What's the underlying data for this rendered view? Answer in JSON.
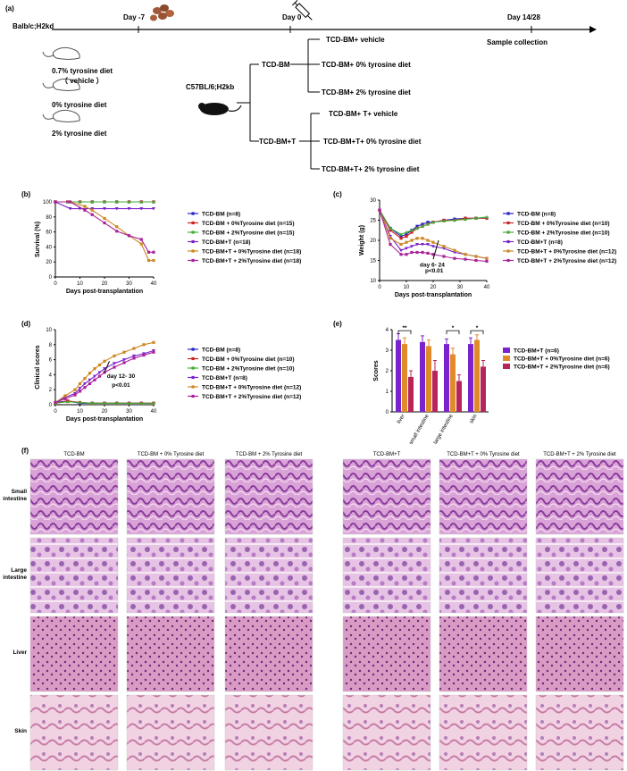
{
  "panel_a": {
    "label": "(a)",
    "donor_strain": "Balb/c;H2kd",
    "timeline": [
      {
        "label": "Day -7",
        "day": -7
      },
      {
        "label": "Day 0",
        "day": 0
      },
      {
        "label": "Day 14/28",
        "day": 14
      }
    ],
    "sample_collection": "Sample collection",
    "diets": [
      "0.7% tyrosine diet",
      "（ vehicle ）",
      "0% tyrosine diet",
      "2% tyrosine diet"
    ],
    "recipient_strain": "C57BL/6;H2kb",
    "groups": [
      {
        "name": "TCD-BM",
        "subgroups": [
          "TCD-BM+ vehicle",
          "TCD-BM+ 0% tyrosine diet",
          "TCD-BM+ 2% tyrosine diet"
        ]
      },
      {
        "name": "TCD-BM+T",
        "subgroups": [
          "TCD-BM+ T+ vehicle",
          "TCD-BM+T+ 0% tyrosine diet",
          "TCD-BM+T+ 2% tyrosine diet"
        ]
      }
    ]
  },
  "colors": {
    "blue": "#2222cc",
    "red": "#cc2222",
    "green": "#44aa33",
    "purple": "#7a22cc",
    "orange": "#cc8822",
    "magenta": "#aa2299",
    "bar_purple": "#7a22cc",
    "bar_orange": "#e08a2a",
    "bar_crimson": "#b8245a"
  },
  "panel_b": {
    "label": "(b)",
    "chart_data": {
      "type": "line",
      "xlabel": "Days post-transplantation",
      "ylabel": "Survival (%)",
      "xlim": [
        0,
        40
      ],
      "ylim": [
        0,
        100
      ],
      "xticks": [
        "0",
        "10",
        "20",
        "30",
        "40"
      ],
      "yticks": [
        "0",
        "20",
        "40",
        "60",
        "80",
        "100"
      ],
      "series": [
        {
          "name": "TCD-BM (n=8)",
          "color": "#2222cc",
          "x": [
            0,
            5,
            10,
            15,
            20,
            25,
            30,
            35,
            40
          ],
          "y": [
            100,
            100,
            100,
            100,
            100,
            100,
            100,
            100,
            100
          ]
        },
        {
          "name": "TCD-BM + 0%Tyrosine diet (n=15)",
          "color": "#cc2222",
          "x": [
            0,
            5,
            10,
            15,
            20,
            25,
            30,
            35,
            40
          ],
          "y": [
            100,
            100,
            100,
            100,
            100,
            100,
            100,
            100,
            100
          ]
        },
        {
          "name": "TCD-BM + 2%Tyrosine diet (n=15)",
          "color": "#44aa33",
          "x": [
            0,
            5,
            10,
            15,
            20,
            25,
            30,
            35,
            40
          ],
          "y": [
            100,
            100,
            100,
            100,
            100,
            100,
            100,
            100,
            100
          ]
        },
        {
          "name": "TCD-BM+T (n=18)",
          "color": "#7a22cc",
          "x": [
            0,
            6,
            10,
            15,
            20,
            25,
            30,
            35,
            40
          ],
          "y": [
            100,
            91,
            91,
            91,
            91,
            91,
            91,
            91,
            91
          ]
        },
        {
          "name": "TCD-BM+T + 0%Tyrosine diet (n=18)",
          "color": "#cc8822",
          "x": [
            0,
            6,
            12,
            15,
            20,
            25,
            30,
            35,
            38,
            40
          ],
          "y": [
            100,
            100,
            94,
            89,
            78,
            67,
            55,
            44,
            22,
            22
          ]
        },
        {
          "name": "TCD-BM+T + 2%Tyrosine diet (n=18)",
          "color": "#aa2299",
          "x": [
            0,
            6,
            12,
            15,
            20,
            25,
            30,
            35,
            38,
            40
          ],
          "y": [
            100,
            100,
            89,
            83,
            72,
            61,
            55,
            50,
            33,
            33
          ]
        }
      ]
    }
  },
  "panel_c": {
    "label": "(c)",
    "annotation": [
      "day 6- 24",
      "p<0.01"
    ],
    "chart_data": {
      "type": "line",
      "xlabel": "Days post-transplantation",
      "ylabel": "Weight (g)",
      "xlim": [
        0,
        40
      ],
      "ylim": [
        10,
        30
      ],
      "xticks": [
        "0",
        "10",
        "20",
        "30",
        "40"
      ],
      "yticks": [
        "10",
        "15",
        "20",
        "25",
        "30"
      ],
      "series": [
        {
          "name": "TCD-BM (n=8)",
          "color": "#2222cc",
          "x": [
            0,
            4,
            8,
            10,
            12,
            14,
            16,
            18,
            20,
            24,
            28,
            32,
            36,
            40
          ],
          "y": [
            27.5,
            23,
            21,
            21.5,
            22.5,
            23.5,
            24,
            24.5,
            24.5,
            25,
            25.3,
            25.5,
            25.5,
            25.5
          ]
        },
        {
          "name": "TCD-BM + 0%Tyrosine diet (n=10)",
          "color": "#cc2222",
          "x": [
            0,
            4,
            8,
            10,
            12,
            14,
            16,
            18,
            20,
            24,
            28,
            32,
            36,
            40
          ],
          "y": [
            27.5,
            22.5,
            20.5,
            21,
            22,
            23,
            23.5,
            24,
            24.5,
            25,
            25,
            25.5,
            25.5,
            25.5
          ]
        },
        {
          "name": "TCD-BM + 2%Tyrosine diet (n=10)",
          "color": "#44aa33",
          "x": [
            0,
            4,
            8,
            10,
            12,
            14,
            16,
            18,
            20,
            24,
            28,
            32,
            36,
            40
          ],
          "y": [
            27.5,
            23,
            21.5,
            22,
            22.5,
            23,
            23.5,
            24,
            24.5,
            24.8,
            25,
            25.2,
            25.5,
            25.8
          ]
        },
        {
          "name": "TCD-BM+T (n=8)",
          "color": "#7a22cc",
          "x": [
            0,
            4,
            8,
            10,
            12,
            14,
            16,
            18,
            20,
            24,
            28,
            32,
            36,
            40
          ],
          "y": [
            27.5,
            21,
            17.5,
            18,
            18.5,
            19,
            19,
            19,
            18.5,
            18,
            17,
            16.5,
            16,
            15.5
          ]
        },
        {
          "name": "TCD-BM+T + 0%Tyrosine diet (n=12)",
          "color": "#cc8822",
          "x": [
            0,
            4,
            8,
            10,
            12,
            14,
            16,
            18,
            20,
            24,
            28,
            32,
            36,
            40
          ],
          "y": [
            27.5,
            20.5,
            19,
            19.5,
            20,
            20.5,
            20.5,
            20,
            19.5,
            18.5,
            17.5,
            16.5,
            16,
            15.5
          ]
        },
        {
          "name": "TCD-BM+T + 2%Tyrosine diet (n=12)",
          "color": "#aa2299",
          "x": [
            0,
            4,
            8,
            10,
            12,
            14,
            16,
            18,
            20,
            24,
            28,
            32,
            36,
            40
          ],
          "y": [
            27.5,
            19,
            16.5,
            16.5,
            17,
            17,
            17,
            16.8,
            16.5,
            16,
            15.5,
            15.3,
            15,
            14.8
          ]
        }
      ]
    }
  },
  "panel_d": {
    "label": "(d)",
    "annotation": [
      "day 12- 30",
      "p<0.01"
    ],
    "chart_data": {
      "type": "line",
      "xlabel": "Days post-transplantation",
      "ylabel": "Clinical scores",
      "xlim": [
        0,
        40
      ],
      "ylim": [
        0,
        10
      ],
      "xticks": [
        "0",
        "10",
        "20",
        "30",
        "40"
      ],
      "yticks": [
        "0",
        "2",
        "4",
        "6",
        "8",
        "10"
      ],
      "series": [
        {
          "name": "TCD-BM (n=8)",
          "color": "#2222cc",
          "x": [
            0,
            5,
            10,
            15,
            20,
            25,
            30,
            35,
            40
          ],
          "y": [
            0.3,
            0.5,
            0.2,
            0.2,
            0.2,
            0.2,
            0.2,
            0.2,
            0.2
          ]
        },
        {
          "name": "TCD-BM + 0%Tyrosine diet (n=10)",
          "color": "#cc2222",
          "x": [
            0,
            5,
            10,
            15,
            20,
            25,
            30,
            35,
            40
          ],
          "y": [
            0.2,
            0.5,
            0.3,
            0.2,
            0.2,
            0.2,
            0.2,
            0.2,
            0.2
          ]
        },
        {
          "name": "TCD-BM + 2%Tyrosine diet (n=10)",
          "color": "#44aa33",
          "x": [
            0,
            5,
            10,
            15,
            20,
            25,
            30,
            35,
            40
          ],
          "y": [
            0.2,
            0.4,
            0.3,
            0.2,
            0.2,
            0.2,
            0.2,
            0.2,
            0.2
          ]
        },
        {
          "name": "TCD-BM+T (n=8)",
          "color": "#7a22cc",
          "x": [
            0,
            4,
            8,
            10,
            12,
            14,
            16,
            18,
            20,
            24,
            28,
            32,
            36,
            40
          ],
          "y": [
            0.3,
            1,
            1.5,
            2.2,
            2.8,
            3.3,
            3.8,
            4.3,
            4.8,
            5.5,
            6,
            6.5,
            6.8,
            7.2
          ]
        },
        {
          "name": "TCD-BM+T + 0%Tyrosine diet (n=12)",
          "color": "#cc8822",
          "x": [
            0,
            4,
            8,
            10,
            12,
            14,
            16,
            18,
            20,
            24,
            28,
            32,
            36,
            40
          ],
          "y": [
            0.3,
            1.2,
            2,
            2.8,
            3.5,
            4.2,
            4.8,
            5.3,
            5.8,
            6.5,
            7,
            7.5,
            8,
            8.3
          ]
        },
        {
          "name": "TCD-BM+T + 2%Tyrosine diet (n=12)",
          "color": "#aa2299",
          "x": [
            0,
            4,
            8,
            10,
            12,
            14,
            16,
            18,
            20,
            24,
            28,
            32,
            36,
            40
          ],
          "y": [
            0.3,
            0.8,
            1.3,
            1.8,
            2.3,
            2.8,
            3.3,
            3.8,
            4.3,
            5,
            5.6,
            6.2,
            6.6,
            7
          ]
        }
      ]
    }
  },
  "panel_e": {
    "label": "(e)",
    "chart_data": {
      "type": "bar",
      "ylabel": "Scores",
      "ylim": [
        0,
        4
      ],
      "yticks": [
        "0",
        "1",
        "2",
        "3",
        "4"
      ],
      "categories": [
        "liver",
        "small intestine",
        "large intestine",
        "skin"
      ],
      "series": [
        {
          "name": "TCD-BM+T (n=6)",
          "color": "#7a22cc",
          "values": [
            3.5,
            3.4,
            3.3,
            3.3
          ],
          "err": [
            0.3,
            0.3,
            0.25,
            0.3
          ]
        },
        {
          "name": "TCD-BM+T + 0%Tyrosine diet (n=6)",
          "color": "#e08a2a",
          "values": [
            3.3,
            3.2,
            2.8,
            3.5
          ],
          "err": [
            0.3,
            0.3,
            0.3,
            0.25
          ]
        },
        {
          "name": "TCD-BM+T + 2%Tyrosine diet (n=6)",
          "color": "#b8245a",
          "values": [
            1.7,
            2.0,
            1.5,
            2.2
          ],
          "err": [
            0.3,
            0.5,
            0.3,
            0.3
          ]
        }
      ],
      "significance": [
        {
          "category": "liver",
          "mark": "**"
        },
        {
          "category": "large intestine",
          "mark": "*"
        },
        {
          "category": "skin",
          "mark": "*"
        }
      ]
    }
  },
  "panel_f": {
    "label": "(f)",
    "left_columns": [
      "TCD-BM",
      "TCD-BM + 0% Tyrosine diet",
      "TCD-BM + 2% Tyrosine diet"
    ],
    "right_columns": [
      "TCD-BM+T",
      "TCD-BM+T + 0% Tyrosine diet",
      "TCD-BM+T + 2% Tyrosine diet"
    ],
    "rows": [
      [
        "Small",
        "intestine"
      ],
      [
        "Large",
        "intestine"
      ],
      [
        "Liver"
      ],
      [
        "Skin"
      ]
    ]
  }
}
